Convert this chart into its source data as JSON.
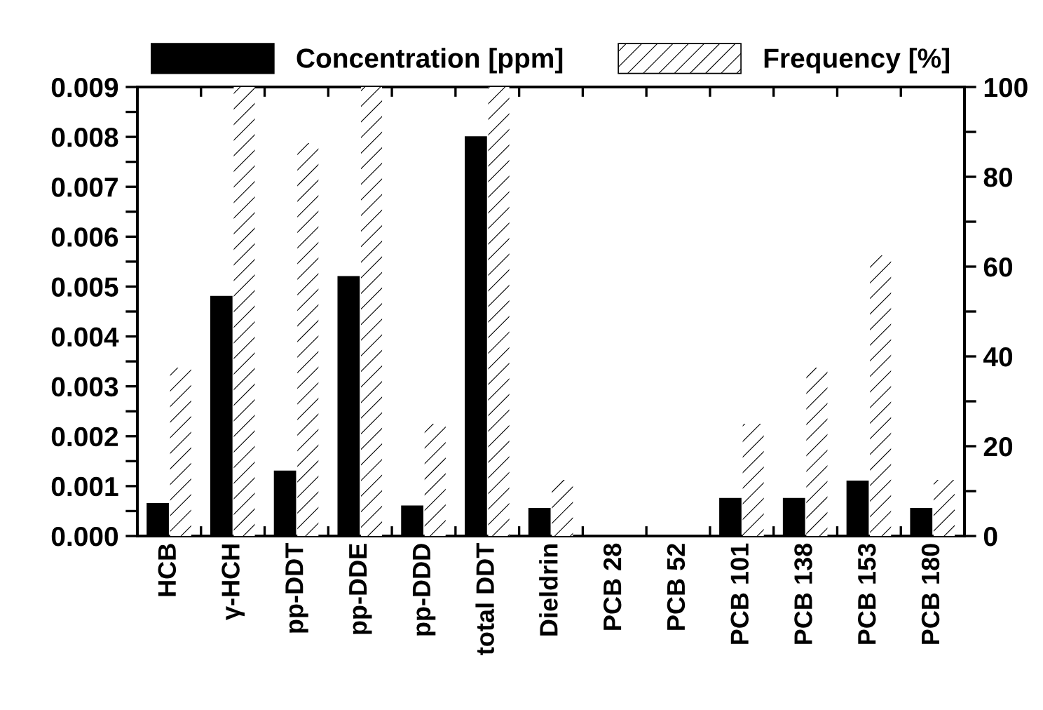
{
  "chart_data": {
    "type": "bar",
    "categories": [
      "HCB",
      "γ-HCH",
      "pp-DDT",
      "pp-DDE",
      "pp-DDD",
      "total DDT",
      "Dieldrin",
      "PCB 28",
      "PCB 52",
      "PCB 101",
      "PCB 138",
      "PCB 153",
      "PCB 180"
    ],
    "series": [
      {
        "name": "Concentration [ppm]",
        "color": "#000000",
        "axis": "y",
        "values": [
          0.00065,
          0.0048,
          0.0013,
          0.0052,
          0.0006,
          0.008,
          0.00055,
          0,
          0,
          0.00075,
          0.00075,
          0.0011,
          0.00055
        ]
      },
      {
        "name": "Frequency [%]",
        "color": "#ffffff",
        "axis": "y2",
        "values": [
          37.5,
          100,
          87.5,
          100,
          25,
          100,
          12.5,
          0,
          0,
          25,
          37.5,
          62.5,
          12.5
        ]
      }
    ],
    "ylim": [
      0,
      0.009
    ],
    "yticks": [
      {
        "value": 0,
        "label": "0.000"
      },
      {
        "value": 0.0005,
        "label": null
      },
      {
        "value": 0.001,
        "label": "0.001"
      },
      {
        "value": 0.0015,
        "label": null
      },
      {
        "value": 0.002,
        "label": "0.002"
      },
      {
        "value": 0.0025,
        "label": null
      },
      {
        "value": 0.003,
        "label": "0.003"
      },
      {
        "value": 0.0035,
        "label": null
      },
      {
        "value": 0.004,
        "label": "0.004"
      },
      {
        "value": 0.0045,
        "label": null
      },
      {
        "value": 0.005,
        "label": "0.005"
      },
      {
        "value": 0.0055,
        "label": null
      },
      {
        "value": 0.006,
        "label": "0.006"
      },
      {
        "value": 0.0065,
        "label": null
      },
      {
        "value": 0.007,
        "label": "0.007"
      },
      {
        "value": 0.0075,
        "label": null
      },
      {
        "value": 0.008,
        "label": "0.008"
      },
      {
        "value": 0.0085,
        "label": null
      },
      {
        "value": 0.009,
        "label": "0.009"
      }
    ],
    "y2lim": [
      0,
      100
    ],
    "y2ticks": [
      0,
      {
        "value": 10,
        "label": null
      },
      20,
      {
        "value": 30,
        "label": null
      },
      40,
      {
        "value": 50,
        "label": null
      },
      60,
      {
        "value": 70,
        "label": null
      },
      80,
      {
        "value": 90,
        "label": null
      },
      100
    ],
    "legend": "top",
    "grid": false
  }
}
